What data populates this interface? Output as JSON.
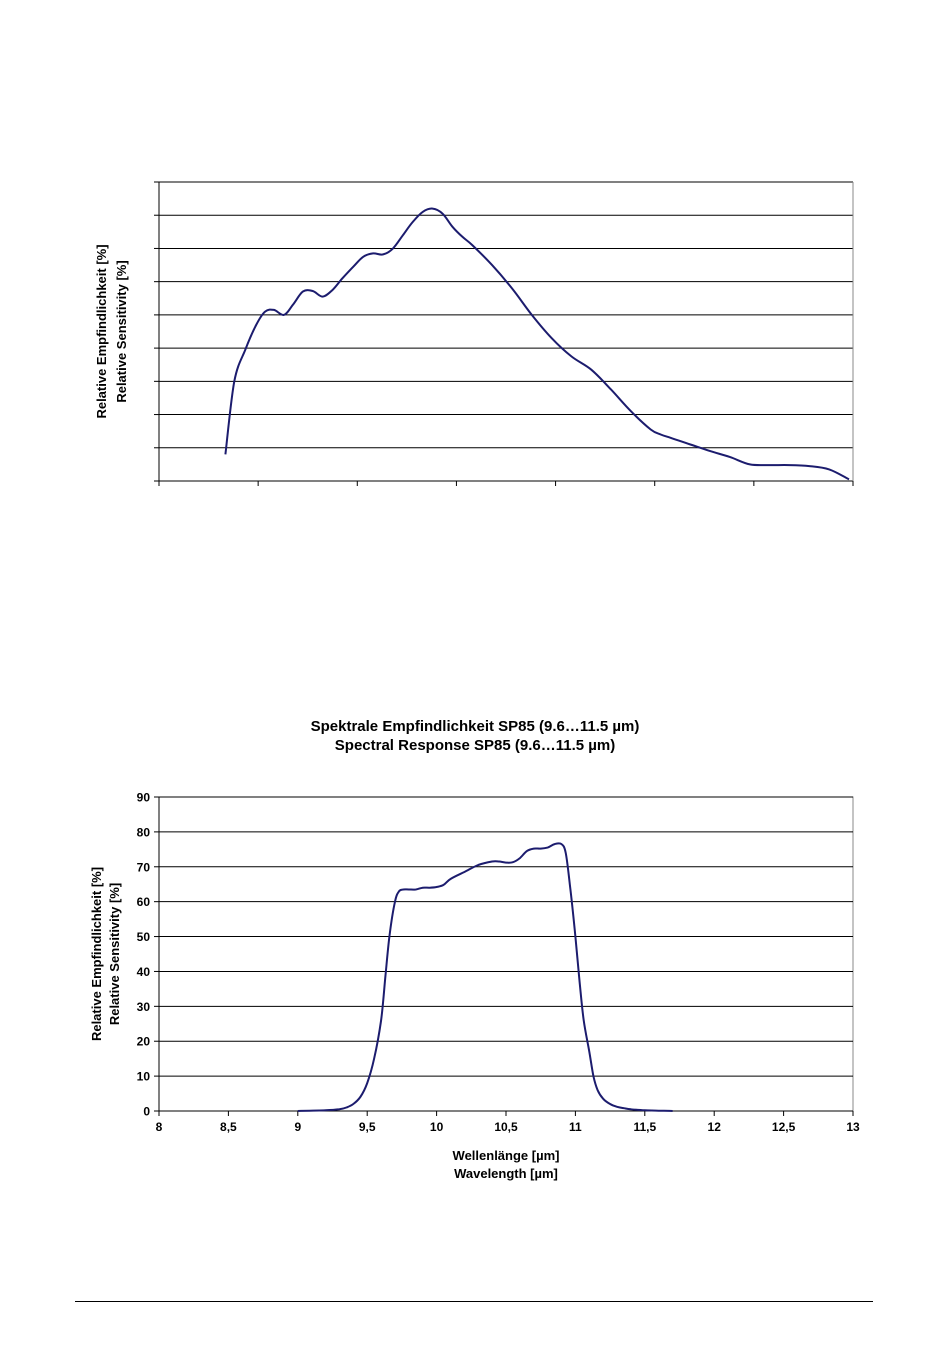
{
  "chart_data": [
    {
      "type": "line",
      "title": "",
      "ylabel": [
        "Relative Empfindlichkeit [%]",
        "Relative Sensitivity [%]"
      ],
      "xlabel": "",
      "x_tick_labels": [],
      "y_tick_labels": [],
      "xlim": [
        0,
        7
      ],
      "ylim": [
        0,
        9
      ],
      "grid": "horizontal",
      "colors": {
        "line": "#1c1c6e",
        "grid": "#000000"
      },
      "series": [
        {
          "x": [
            0.67,
            0.76,
            0.87,
            0.98,
            1.07,
            1.16,
            1.26,
            1.35,
            1.45,
            1.55,
            1.65,
            1.75,
            1.85,
            1.96,
            2.06,
            2.16,
            2.26,
            2.36,
            2.46,
            2.56,
            2.66,
            2.76,
            2.86,
            2.96,
            3.06,
            3.16,
            3.36,
            3.56,
            3.76,
            3.96,
            4.16,
            4.36,
            4.56,
            4.76,
            4.96,
            5.06,
            5.16,
            5.36,
            5.56,
            5.76,
            5.96,
            6.16,
            6.36,
            6.56,
            6.76,
            6.96
          ],
          "y": [
            0.8,
            3.0,
            3.95,
            4.7,
            5.1,
            5.15,
            5.0,
            5.3,
            5.7,
            5.72,
            5.55,
            5.75,
            6.1,
            6.45,
            6.75,
            6.85,
            6.82,
            7.0,
            7.4,
            7.8,
            8.1,
            8.2,
            8.05,
            7.65,
            7.35,
            7.1,
            6.5,
            5.8,
            5.0,
            4.3,
            3.75,
            3.35,
            2.75,
            2.1,
            1.55,
            1.4,
            1.3,
            1.1,
            0.9,
            0.72,
            0.5,
            0.48,
            0.48,
            0.45,
            0.35,
            0.05
          ]
        }
      ]
    },
    {
      "type": "line",
      "title": [
        "Spektrale Empfindlichkeit  SP85 (9.6…11.5 µm)",
        "Spectral Response SP85 (9.6…11.5 µm)"
      ],
      "ylabel": [
        "Relative Empfindlichkeit [%]",
        "Relative Sensitivity [%]"
      ],
      "xlabel": [
        "Wellenlänge [µm]",
        "Wavelength [µm]"
      ],
      "xlim": [
        8,
        13
      ],
      "ylim": [
        0,
        90
      ],
      "x_ticks": [
        8,
        8.5,
        9,
        9.5,
        10,
        10.5,
        11,
        11.5,
        12,
        12.5,
        13
      ],
      "x_tick_labels": [
        "8",
        "8,5",
        "9",
        "9,5",
        "10",
        "10,5",
        "11",
        "11,5",
        "12",
        "12,5",
        "13"
      ],
      "y_ticks": [
        0,
        10,
        20,
        30,
        40,
        50,
        60,
        70,
        80,
        90
      ],
      "y_tick_labels": [
        "0",
        "10",
        "20",
        "30",
        "40",
        "50",
        "60",
        "70",
        "80",
        "90"
      ],
      "grid": "horizontal",
      "colors": {
        "line": "#1c1c6e",
        "grid": "#000000",
        "frame": "#888888"
      },
      "series": [
        {
          "x": [
            9.0,
            9.2,
            9.3,
            9.35,
            9.4,
            9.45,
            9.5,
            9.55,
            9.6,
            9.63,
            9.66,
            9.7,
            9.73,
            9.76,
            9.8,
            9.85,
            9.9,
            9.95,
            10.0,
            10.05,
            10.1,
            10.2,
            10.3,
            10.4,
            10.45,
            10.5,
            10.55,
            10.6,
            10.65,
            10.7,
            10.75,
            10.8,
            10.85,
            10.9,
            10.93,
            10.96,
            11.0,
            11.03,
            11.06,
            11.1,
            11.13,
            11.16,
            11.2,
            11.25,
            11.3,
            11.35,
            11.4,
            11.5,
            11.6,
            11.7
          ],
          "y": [
            0,
            0.2,
            0.5,
            1.0,
            2.0,
            4.0,
            8.0,
            15.0,
            26.0,
            38.0,
            50.0,
            60.0,
            63.0,
            63.5,
            63.5,
            63.5,
            64.0,
            64.0,
            64.2,
            64.8,
            66.5,
            68.5,
            70.5,
            71.5,
            71.5,
            71.2,
            71.3,
            72.5,
            74.5,
            75.2,
            75.2,
            75.5,
            76.5,
            76.5,
            74.0,
            65.0,
            50.0,
            37.0,
            26.0,
            17.0,
            10.0,
            6.0,
            3.5,
            2.0,
            1.2,
            0.8,
            0.5,
            0.2,
            0.1,
            0
          ]
        }
      ]
    }
  ]
}
